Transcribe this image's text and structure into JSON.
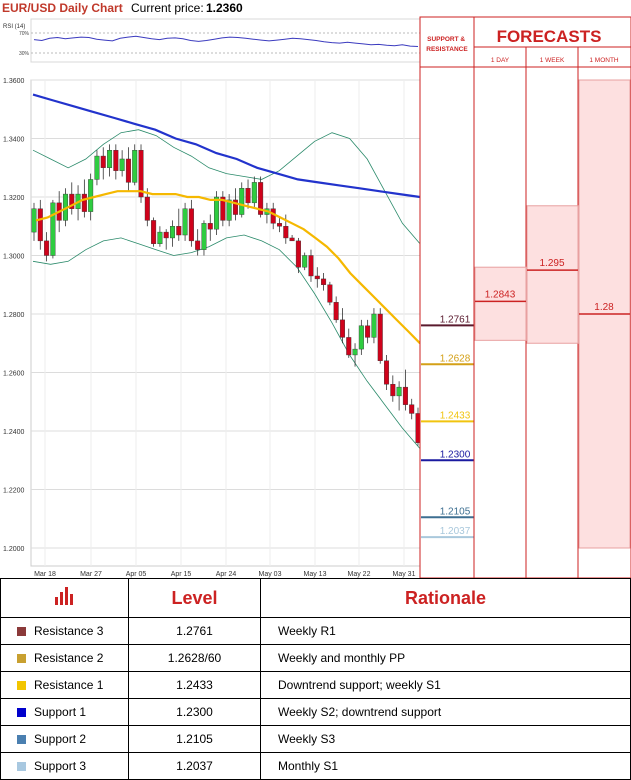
{
  "header": {
    "title": "EUR/USD Daily Chart",
    "price_label": "Current price:",
    "price_value": "1.2360"
  },
  "chart_data": {
    "type": "candlestick",
    "rsi_label": "RSI (14)",
    "rsi_ticks": [
      "70%",
      "30%"
    ],
    "rsi_ylim": [
      0,
      100
    ],
    "rsi_values": [
      52,
      50,
      55,
      57,
      54,
      56,
      58,
      57,
      53,
      51,
      49,
      55,
      58,
      60,
      57,
      54,
      52,
      55,
      56,
      54,
      50,
      48,
      50,
      53,
      56,
      58,
      57,
      55,
      53,
      51,
      49,
      51,
      53,
      55,
      54,
      52,
      50,
      47,
      45,
      44,
      46,
      44,
      42,
      40,
      41,
      39,
      38,
      40,
      37,
      36
    ],
    "ylim": [
      1.2,
      1.36
    ],
    "y_ticks": [
      "1.3600",
      "1.3400",
      "1.3200",
      "1.3000",
      "1.2800",
      "1.2600",
      "1.2400",
      "1.2200",
      "1.2000"
    ],
    "x_ticks": [
      "Mar 18",
      "Mar 27",
      "Apr 05",
      "Apr 15",
      "Apr 24",
      "May 03",
      "May 13",
      "May 22",
      "May 31"
    ],
    "candles": [
      {
        "o": 1.308,
        "h": 1.318,
        "l": 1.305,
        "c": 1.316
      },
      {
        "o": 1.316,
        "h": 1.319,
        "l": 1.302,
        "c": 1.305
      },
      {
        "o": 1.305,
        "h": 1.308,
        "l": 1.298,
        "c": 1.3
      },
      {
        "o": 1.3,
        "h": 1.319,
        "l": 1.299,
        "c": 1.318
      },
      {
        "o": 1.318,
        "h": 1.322,
        "l": 1.308,
        "c": 1.312
      },
      {
        "o": 1.312,
        "h": 1.323,
        "l": 1.31,
        "c": 1.321
      },
      {
        "o": 1.321,
        "h": 1.325,
        "l": 1.314,
        "c": 1.316
      },
      {
        "o": 1.316,
        "h": 1.324,
        "l": 1.312,
        "c": 1.321
      },
      {
        "o": 1.321,
        "h": 1.326,
        "l": 1.313,
        "c": 1.315
      },
      {
        "o": 1.315,
        "h": 1.328,
        "l": 1.312,
        "c": 1.326
      },
      {
        "o": 1.326,
        "h": 1.336,
        "l": 1.324,
        "c": 1.334
      },
      {
        "o": 1.334,
        "h": 1.337,
        "l": 1.326,
        "c": 1.33
      },
      {
        "o": 1.33,
        "h": 1.338,
        "l": 1.327,
        "c": 1.336
      },
      {
        "o": 1.336,
        "h": 1.338,
        "l": 1.326,
        "c": 1.329
      },
      {
        "o": 1.329,
        "h": 1.336,
        "l": 1.327,
        "c": 1.333
      },
      {
        "o": 1.333,
        "h": 1.337,
        "l": 1.322,
        "c": 1.325
      },
      {
        "o": 1.325,
        "h": 1.338,
        "l": 1.324,
        "c": 1.336
      },
      {
        "o": 1.336,
        "h": 1.338,
        "l": 1.318,
        "c": 1.32
      },
      {
        "o": 1.32,
        "h": 1.323,
        "l": 1.31,
        "c": 1.312
      },
      {
        "o": 1.312,
        "h": 1.313,
        "l": 1.303,
        "c": 1.304
      },
      {
        "o": 1.304,
        "h": 1.31,
        "l": 1.303,
        "c": 1.308
      },
      {
        "o": 1.308,
        "h": 1.309,
        "l": 1.302,
        "c": 1.306
      },
      {
        "o": 1.306,
        "h": 1.312,
        "l": 1.303,
        "c": 1.31
      },
      {
        "o": 1.31,
        "h": 1.316,
        "l": 1.305,
        "c": 1.307
      },
      {
        "o": 1.307,
        "h": 1.318,
        "l": 1.305,
        "c": 1.316
      },
      {
        "o": 1.316,
        "h": 1.319,
        "l": 1.303,
        "c": 1.305
      },
      {
        "o": 1.305,
        "h": 1.309,
        "l": 1.3,
        "c": 1.302
      },
      {
        "o": 1.302,
        "h": 1.312,
        "l": 1.3,
        "c": 1.311
      },
      {
        "o": 1.311,
        "h": 1.314,
        "l": 1.305,
        "c": 1.309
      },
      {
        "o": 1.309,
        "h": 1.322,
        "l": 1.307,
        "c": 1.32
      },
      {
        "o": 1.32,
        "h": 1.322,
        "l": 1.31,
        "c": 1.312
      },
      {
        "o": 1.312,
        "h": 1.321,
        "l": 1.31,
        "c": 1.319
      },
      {
        "o": 1.319,
        "h": 1.323,
        "l": 1.312,
        "c": 1.314
      },
      {
        "o": 1.314,
        "h": 1.325,
        "l": 1.313,
        "c": 1.323
      },
      {
        "o": 1.323,
        "h": 1.326,
        "l": 1.316,
        "c": 1.318
      },
      {
        "o": 1.318,
        "h": 1.327,
        "l": 1.316,
        "c": 1.325
      },
      {
        "o": 1.325,
        "h": 1.327,
        "l": 1.313,
        "c": 1.314
      },
      {
        "o": 1.314,
        "h": 1.318,
        "l": 1.311,
        "c": 1.316
      },
      {
        "o": 1.316,
        "h": 1.318,
        "l": 1.309,
        "c": 1.311
      },
      {
        "o": 1.311,
        "h": 1.313,
        "l": 1.308,
        "c": 1.31
      },
      {
        "o": 1.31,
        "h": 1.314,
        "l": 1.304,
        "c": 1.306
      },
      {
        "o": 1.306,
        "h": 1.307,
        "l": 1.305,
        "c": 1.305
      },
      {
        "o": 1.305,
        "h": 1.306,
        "l": 1.294,
        "c": 1.296
      },
      {
        "o": 1.296,
        "h": 1.301,
        "l": 1.295,
        "c": 1.3
      },
      {
        "o": 1.3,
        "h": 1.302,
        "l": 1.291,
        "c": 1.293
      },
      {
        "o": 1.293,
        "h": 1.296,
        "l": 1.289,
        "c": 1.292
      },
      {
        "o": 1.292,
        "h": 1.294,
        "l": 1.288,
        "c": 1.29
      },
      {
        "o": 1.29,
        "h": 1.291,
        "l": 1.283,
        "c": 1.284
      },
      {
        "o": 1.284,
        "h": 1.286,
        "l": 1.277,
        "c": 1.278
      },
      {
        "o": 1.278,
        "h": 1.282,
        "l": 1.27,
        "c": 1.272
      },
      {
        "o": 1.272,
        "h": 1.275,
        "l": 1.265,
        "c": 1.266
      },
      {
        "o": 1.266,
        "h": 1.27,
        "l": 1.262,
        "c": 1.268
      },
      {
        "o": 1.268,
        "h": 1.278,
        "l": 1.266,
        "c": 1.276
      },
      {
        "o": 1.276,
        "h": 1.278,
        "l": 1.27,
        "c": 1.272
      },
      {
        "o": 1.272,
        "h": 1.282,
        "l": 1.27,
        "c": 1.28
      },
      {
        "o": 1.28,
        "h": 1.282,
        "l": 1.263,
        "c": 1.264
      },
      {
        "o": 1.264,
        "h": 1.266,
        "l": 1.254,
        "c": 1.256
      },
      {
        "o": 1.256,
        "h": 1.259,
        "l": 1.25,
        "c": 1.252
      },
      {
        "o": 1.252,
        "h": 1.257,
        "l": 1.247,
        "c": 1.255
      },
      {
        "o": 1.255,
        "h": 1.261,
        "l": 1.247,
        "c": 1.249
      },
      {
        "o": 1.249,
        "h": 1.251,
        "l": 1.244,
        "c": 1.246
      },
      {
        "o": 1.246,
        "h": 1.248,
        "l": 1.235,
        "c": 1.236
      }
    ],
    "sma_fast": [
      1.312,
      1.313,
      1.315,
      1.317,
      1.319,
      1.32,
      1.321,
      1.322,
      1.322,
      1.322,
      1.321,
      1.321,
      1.321,
      1.32,
      1.32,
      1.319,
      1.319,
      1.318,
      1.317,
      1.316,
      1.315,
      1.313,
      1.311,
      1.309,
      1.306,
      1.303,
      1.299,
      1.294,
      1.29,
      1.286,
      1.282,
      1.278,
      1.274,
      1.27
    ],
    "sma_slow": [
      1.355,
      1.353,
      1.351,
      1.349,
      1.347,
      1.345,
      1.343,
      1.34,
      1.338,
      1.335,
      1.333,
      1.33,
      1.328,
      1.326,
      1.325,
      1.324,
      1.323,
      1.322,
      1.321,
      1.32
    ],
    "bollinger_upper": [
      1.336,
      1.333,
      1.33,
      1.333,
      1.338,
      1.342,
      1.343,
      1.341,
      1.337,
      1.334,
      1.33,
      1.328,
      1.327,
      1.326,
      1.329,
      1.334,
      1.339,
      1.342,
      1.34,
      1.333,
      1.322,
      1.311,
      1.304
    ],
    "bollinger_lower": [
      1.298,
      1.297,
      1.298,
      1.302,
      1.305,
      1.306,
      1.304,
      1.302,
      1.3,
      1.301,
      1.303,
      1.306,
      1.307,
      1.305,
      1.302,
      1.296,
      1.287,
      1.277,
      1.266,
      1.257,
      1.249,
      1.241,
      1.234
    ]
  },
  "levels": {
    "header": "SUPPORT & RESISTANCE",
    "items": [
      {
        "value": 1.2761,
        "label": "1.2761",
        "color": "#5a1a2e"
      },
      {
        "value": 1.2628,
        "label": "1.2628",
        "color": "#d4a017"
      },
      {
        "value": 1.2433,
        "label": "1.2433",
        "color": "#f1c40f"
      },
      {
        "value": 1.23,
        "label": "1.2300",
        "color": "#1a1aa0"
      },
      {
        "value": 1.2105,
        "label": "1.2105",
        "color": "#3d6f91"
      },
      {
        "value": 1.2037,
        "label": "1.2037",
        "color": "#a9c8dc"
      }
    ]
  },
  "forecasts": {
    "title": "FORECASTS",
    "columns": [
      {
        "label": "1 DAY",
        "value": 1.2843,
        "value_label": "1.2843",
        "range": [
          1.271,
          1.296
        ]
      },
      {
        "label": "1 WEEK",
        "value": 1.295,
        "value_label": "1.295",
        "range": [
          1.27,
          1.317
        ]
      },
      {
        "label": "1 MONTH",
        "value": 1.28,
        "value_label": "1.28",
        "range": [
          1.2,
          1.36
        ]
      }
    ]
  },
  "table": {
    "headers": [
      "",
      "Level",
      "Rationale"
    ],
    "header_icon": "bar-chart-icon",
    "rows": [
      {
        "name": "Resistance 3",
        "level": "1.2761",
        "rationale": "Weekly R1",
        "color": "#8b3a3a"
      },
      {
        "name": "Resistance 2",
        "level": "1.2628/60",
        "rationale": "Weekly and monthly PP",
        "color": "#c8a030"
      },
      {
        "name": "Resistance 1",
        "level": "1.2433",
        "rationale": "Downtrend support; weekly S1",
        "color": "#f2c500"
      },
      {
        "name": "Support 1",
        "level": "1.2300",
        "rationale": "Weekly S2; downtrend support",
        "color": "#0000cc"
      },
      {
        "name": "Support 2",
        "level": "1.2105",
        "rationale": "Weekly S3",
        "color": "#4a7fb0"
      },
      {
        "name": "Support 3",
        "level": "1.2037",
        "rationale": "Monthly S1",
        "color": "#a8c8e0"
      }
    ]
  }
}
